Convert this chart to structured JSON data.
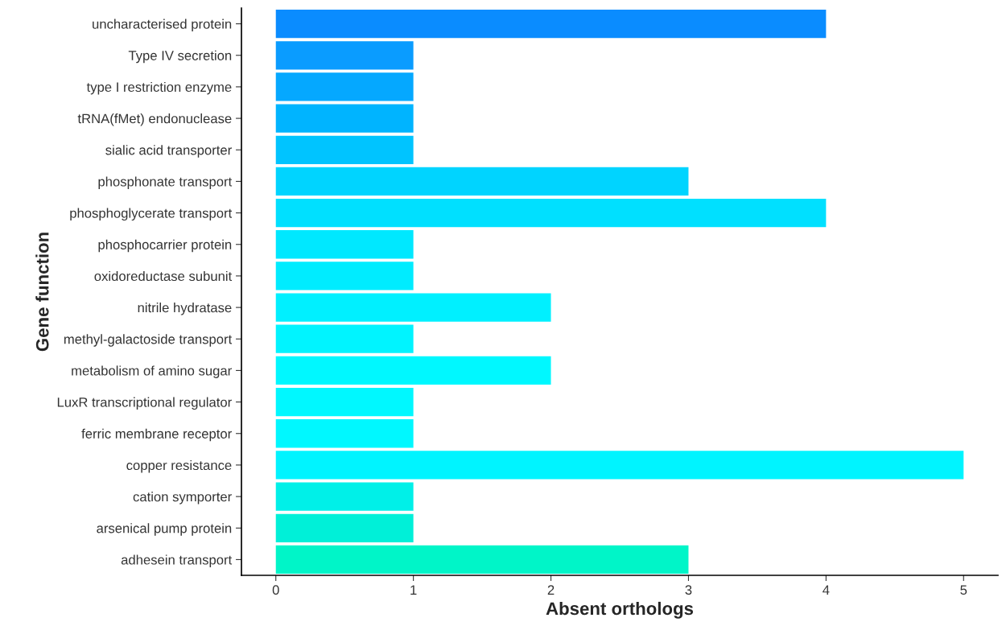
{
  "chart_data": {
    "type": "bar",
    "orientation": "horizontal",
    "xlabel": "Absent orthologs",
    "ylabel": "Gene function",
    "categories": [
      "uncharacterised protein",
      "Type IV secretion",
      "type I restriction enzyme",
      "tRNA(fMet) endonuclease",
      "sialic acid transporter",
      "phosphonate transport",
      "phosphoglycerate transport",
      "phosphocarrier protein",
      "oxidoreductase subunit",
      "nitrile hydratase",
      "methyl-galactoside transport",
      "metabolism of amino sugar",
      "LuxR transcriptional regulator",
      "ferric membrane receptor",
      "copper resistance",
      "cation symporter",
      "arsenical pump protein",
      "adhesein transport"
    ],
    "values": [
      4,
      1,
      1,
      1,
      1,
      3,
      4,
      1,
      1,
      2,
      1,
      2,
      1,
      1,
      5,
      1,
      1,
      3
    ],
    "colors": [
      "#0a8cff",
      "#0a9cff",
      "#05a8ff",
      "#00b4ff",
      "#00c4ff",
      "#00d4ff",
      "#00e0ff",
      "#00e8ff",
      "#00ecff",
      "#00f0ff",
      "#00f4ff",
      "#00f8ff",
      "#00f8ff",
      "#00f8ff",
      "#00f4ff",
      "#00f0e8",
      "#00f0d8",
      "#00f5c8"
    ],
    "xlim": [
      -0.25,
      5.25
    ],
    "xticks": [
      0,
      1,
      2,
      3,
      4,
      5
    ],
    "grid": false,
    "legend": false
  }
}
